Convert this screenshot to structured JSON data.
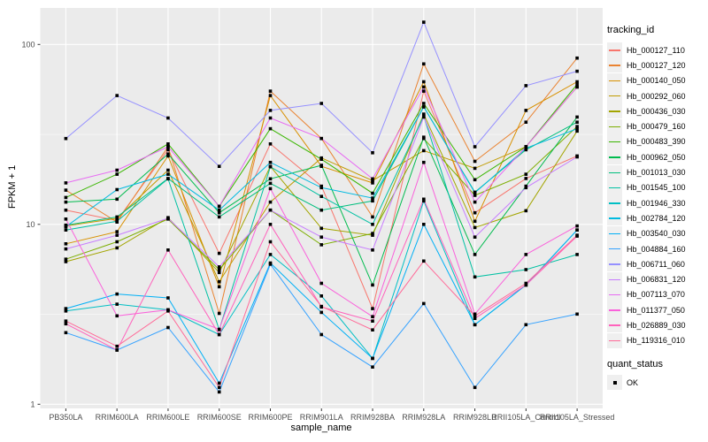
{
  "figure": {
    "panel_bg": "#EBEBEB",
    "grid_color": "#FFFFFF",
    "tick_color": "#333333",
    "axis_text_color": "#4D4D4D",
    "point_color": "#000000",
    "y_axis": {
      "label": "FPKM + 1",
      "tick_labels": [
        "1",
        "10",
        "100"
      ],
      "tick_values": [
        1,
        10,
        100
      ],
      "minor_tick_values": [
        3.1623,
        31.623
      ]
    },
    "x_axis": {
      "label": "sample_name"
    },
    "legend": {
      "tracking_title": "tracking_id",
      "quant_title": "quant_status",
      "quant_ok_label": "OK",
      "quant_marker": "black-square-icon"
    }
  },
  "chart_data": {
    "type": "line",
    "title": "",
    "xlabel": "sample_name",
    "ylabel": "FPKM + 1",
    "y_scale": "log10",
    "ylim": [
      0.95,
      158
    ],
    "grid": true,
    "legend_position": "right",
    "marker": "black-square",
    "categories": [
      "PB350LA",
      "RRIM600LA",
      "RRIM600LE",
      "RRIM600SE",
      "RRIM600PE",
      "RRIM901LA",
      "RRIM928BA",
      "RRIM928LA",
      "RRIM928LB",
      "RRII105LA_Control",
      "RRII105LA_Stressed"
    ],
    "series": [
      {
        "name": "Hb_000127_110",
        "color": "#F8766D",
        "values": [
          12.0,
          10.5,
          26,
          6.9,
          28,
          16.3,
          3.4,
          55,
          11.6,
          18,
          24
        ]
      },
      {
        "name": "Hb_000127_120",
        "color": "#EA8331",
        "values": [
          15.5,
          10.3,
          27,
          3.2,
          55,
          30,
          11.0,
          78,
          22.4,
          37,
          84
        ]
      },
      {
        "name": "Hb_000140_050",
        "color": "#D89000",
        "values": [
          7.8,
          9.1,
          24,
          4.5,
          52,
          21,
          17.0,
          62,
          10.4,
          43,
          62
        ]
      },
      {
        "name": "Hb_000292_060",
        "color": "#C09B00",
        "values": [
          9.8,
          10.8,
          20,
          4.8,
          13.3,
          23.4,
          17.5,
          25.7,
          20.5,
          27,
          58
        ]
      },
      {
        "name": "Hb_000436_030",
        "color": "#A3A500",
        "values": [
          6.2,
          7.4,
          10.9,
          5.4,
          21,
          9.5,
          8.7,
          41,
          9.6,
          11.9,
          33
        ]
      },
      {
        "name": "Hb_000479_160",
        "color": "#7CAE00",
        "values": [
          6.4,
          8.0,
          10.7,
          5.6,
          12.0,
          7.7,
          8.9,
          30,
          14.5,
          19,
          35
        ]
      },
      {
        "name": "Hb_000483_390",
        "color": "#39B600",
        "values": [
          14.1,
          19,
          28,
          12.6,
          34,
          23,
          14.9,
          47,
          17.7,
          27,
          60
        ]
      },
      {
        "name": "Hb_000962_050",
        "color": "#00BB4E",
        "values": [
          13.3,
          13.8,
          24.6,
          11.6,
          17.9,
          21.3,
          4.6,
          30.5,
          6.8,
          16.3,
          39.5
        ]
      },
      {
        "name": "Hb_001013_030",
        "color": "#00BF7D",
        "values": [
          9.9,
          11.0,
          18,
          11.0,
          16.9,
          12.0,
          13.5,
          45,
          15.1,
          26,
          37
        ]
      },
      {
        "name": "Hb_001545_100",
        "color": "#00C1A3",
        "values": [
          9.3,
          10.4,
          17.9,
          2.6,
          20.9,
          14.3,
          10.0,
          40,
          5.1,
          5.6,
          6.8
        ]
      },
      {
        "name": "Hb_001946_330",
        "color": "#00BFC4",
        "values": [
          3.3,
          3.6,
          3.35,
          2.44,
          6.8,
          4.0,
          1.8,
          13.5,
          2.77,
          4.6,
          9.3
        ]
      },
      {
        "name": "Hb_002784_120",
        "color": "#00BAE0",
        "values": [
          9.7,
          15.6,
          19,
          12.0,
          22.1,
          16.0,
          14.0,
          45,
          15.0,
          26.5,
          34
        ]
      },
      {
        "name": "Hb_003540_030",
        "color": "#00B0F6",
        "values": [
          3.4,
          4.1,
          3.9,
          1.31,
          6.1,
          3.24,
          1.8,
          10.0,
          2.77,
          4.6,
          9.3
        ]
      },
      {
        "name": "Hb_004884_160",
        "color": "#35A2FF",
        "values": [
          2.5,
          2.0,
          2.67,
          1.17,
          6.0,
          2.44,
          1.61,
          3.63,
          1.24,
          2.77,
          3.17
        ]
      },
      {
        "name": "Hb_006711_060",
        "color": "#9590FF",
        "values": [
          30,
          52,
          39,
          21,
          43,
          47,
          25,
          133,
          27,
          59,
          71
        ]
      },
      {
        "name": "Hb_006831_120",
        "color": "#C77CFF",
        "values": [
          7.3,
          8.7,
          10.8,
          5.8,
          12.0,
          8.5,
          7.2,
          39.5,
          8.5,
          16,
          23.7
        ]
      },
      {
        "name": "Hb_007113_070",
        "color": "#E76BF3",
        "values": [
          17,
          20,
          27,
          12.6,
          39,
          30,
          17.9,
          58,
          13.3,
          27,
          58
        ]
      },
      {
        "name": "Hb_011377_050",
        "color": "#FA62DB",
        "values": [
          10.7,
          3.1,
          3.35,
          2.61,
          15.8,
          4.7,
          3.07,
          22.1,
          3.17,
          6.8,
          9.8
        ]
      },
      {
        "name": "Hb_026889_030",
        "color": "#FF62BC",
        "values": [
          2.8,
          2.0,
          7.2,
          2.44,
          10.0,
          3.47,
          2.9,
          13.8,
          3.0,
          4.6,
          8.6
        ]
      },
      {
        "name": "Hb_119316_010",
        "color": "#FF6A98",
        "values": [
          2.9,
          2.1,
          3.3,
          1.24,
          8.0,
          3.5,
          2.59,
          6.25,
          3.1,
          4.7,
          8.7
        ]
      }
    ]
  }
}
